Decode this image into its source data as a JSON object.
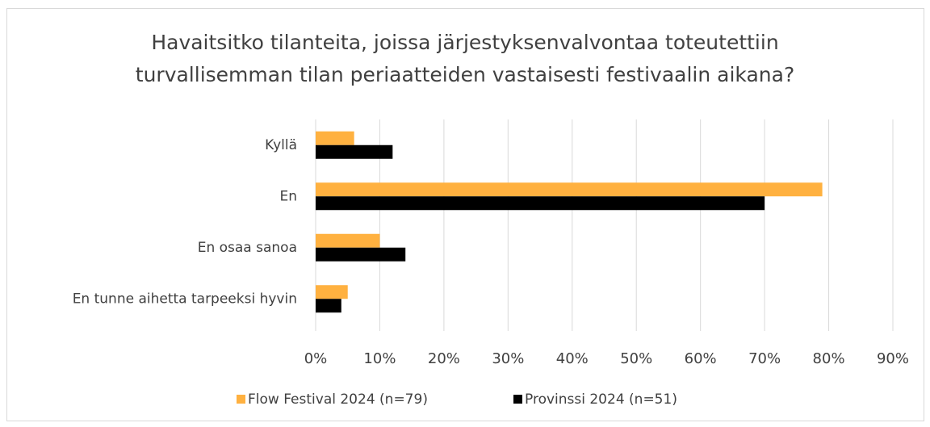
{
  "chart_data": {
    "type": "barh",
    "title": [
      "Havaitsitko tilanteita, joissa järjestyksenvalvontaa toteutettiin",
      "turvallisemman tilan periaatteiden vastaisesti festivaalin aikana?"
    ],
    "categories": [
      "Kyllä",
      "En",
      "En osaa sanoa",
      "En tunne aihetta tarpeeksi hyvin"
    ],
    "series": [
      {
        "name": "Flow Festival 2024 (n=79)",
        "color": "#ffb140",
        "values": [
          6,
          79,
          10,
          5
        ]
      },
      {
        "name": "Provinssi 2024 (n=51)",
        "color": "#000000",
        "values": [
          12,
          70,
          14,
          4
        ]
      }
    ],
    "xlim": [
      0,
      90
    ],
    "xticks": [
      {
        "value": 0,
        "label": "0%"
      },
      {
        "value": 10,
        "label": "10%"
      },
      {
        "value": 20,
        "label": "20%"
      },
      {
        "value": 30,
        "label": "30%"
      },
      {
        "value": 40,
        "label": "40%"
      },
      {
        "value": 50,
        "label": "50%"
      },
      {
        "value": 60,
        "label": "60%"
      },
      {
        "value": 70,
        "label": "70%"
      },
      {
        "value": 80,
        "label": "80%"
      },
      {
        "value": 90,
        "label": "90%"
      }
    ],
    "grid": true,
    "legend": "bottom"
  }
}
